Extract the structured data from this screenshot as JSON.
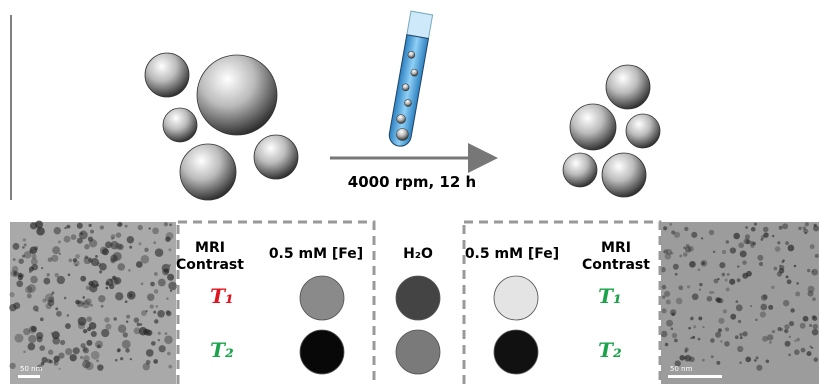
{
  "arrow_label": "4000 rpm, 12 h",
  "left_panel": {
    "scale_bar": "50 nm"
  },
  "left_table": {
    "headers": [
      "MRI Contrast",
      "0.5 mM [Fe]"
    ],
    "rows": [
      "T₁",
      "T₂"
    ]
  },
  "middle": {
    "header": "H₂O"
  },
  "right_table": {
    "headers": [
      "0.5 mM [Fe]",
      "MRI Contrast"
    ],
    "rows": [
      "T₁",
      "T₂"
    ]
  },
  "right_panel": {
    "scale_bar": "50 nm"
  }
}
